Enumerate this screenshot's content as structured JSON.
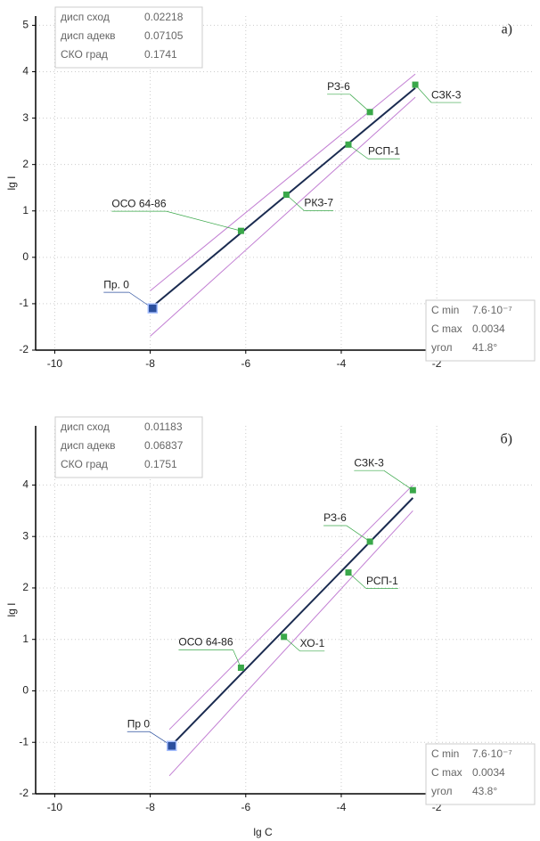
{
  "chart_data": [
    {
      "type": "scatter",
      "panel_label": "а)",
      "ylabel": "lg I",
      "xlim": [
        -10.4,
        0.05
      ],
      "ylim": [
        -2,
        5.2
      ],
      "xticks": [
        -10,
        -8,
        -6,
        -4,
        -2
      ],
      "yticks": [
        -2,
        -1,
        0,
        1,
        2,
        3,
        4,
        5
      ],
      "grid": true,
      "points": [
        {
          "label": "Пр. 0",
          "x": -7.95,
          "y": -1.1,
          "color": "#2b4f9e"
        },
        {
          "label": "ОСО 64-86",
          "x": -6.1,
          "y": 0.57,
          "color": "#3aa84a"
        },
        {
          "label": "РКЗ-7",
          "x": -5.15,
          "y": 1.35,
          "color": "#3aa84a"
        },
        {
          "label": "РСП-1",
          "x": -3.85,
          "y": 2.43,
          "color": "#3aa84a"
        },
        {
          "label": "РЗ-6",
          "x": -3.4,
          "y": 3.13,
          "color": "#3aa84a"
        },
        {
          "label": "СЗК-3",
          "x": -2.45,
          "y": 3.72,
          "color": "#3aa84a"
        }
      ],
      "fit_line": {
        "x": [
          -8,
          -2.45
        ],
        "y": [
          -1.1,
          3.65
        ],
        "color": "#1a2b50"
      },
      "band_upper": {
        "x": [
          -8,
          -2.45
        ],
        "y": [
          -0.72,
          3.95
        ],
        "color": "#c27fd3"
      },
      "band_lower": {
        "x": [
          -8,
          -2.45
        ],
        "y": [
          -1.7,
          3.45
        ],
        "color": "#c27fd3"
      },
      "stats_top": [
        {
          "label": "дисп сход",
          "value": "0.02218"
        },
        {
          "label": "дисп адекв",
          "value": "0.07105"
        },
        {
          "label": "СКО град",
          "value": "0.1741"
        }
      ],
      "stats_bottom": [
        {
          "label": "C min",
          "value": "7.6·10⁻⁷"
        },
        {
          "label": "C max",
          "value": "0.0034"
        },
        {
          "label": "угол",
          "value": "41.8°"
        }
      ]
    },
    {
      "type": "scatter",
      "panel_label": "б)",
      "ylabel": "lg I",
      "xlabel": "lg C",
      "xlim": [
        -10.4,
        0.05
      ],
      "ylim": [
        -2,
        5.15
      ],
      "xticks": [
        -10,
        -8,
        -6,
        -4,
        -2
      ],
      "yticks": [
        -2,
        -1,
        0,
        1,
        2,
        3,
        4
      ],
      "grid": true,
      "points": [
        {
          "label": "Пр 0",
          "x": -7.55,
          "y": -1.07,
          "color": "#2b4f9e"
        },
        {
          "label": "ОСО 64-86",
          "x": -6.1,
          "y": 0.45,
          "color": "#3aa84a"
        },
        {
          "label": "ХО-1",
          "x": -5.2,
          "y": 1.05,
          "color": "#3aa84a"
        },
        {
          "label": "РСП-1",
          "x": -3.85,
          "y": 2.3,
          "color": "#3aa84a"
        },
        {
          "label": "РЗ-6",
          "x": -3.4,
          "y": 2.9,
          "color": "#3aa84a"
        },
        {
          "label": "СЗК-3",
          "x": -2.5,
          "y": 3.9,
          "color": "#3aa84a"
        }
      ],
      "fit_line": {
        "x": [
          -7.6,
          -2.5
        ],
        "y": [
          -1.1,
          3.75
        ],
        "color": "#1a2b50"
      },
      "band_upper": {
        "x": [
          -7.6,
          -2.5
        ],
        "y": [
          -0.75,
          4.0
        ],
        "color": "#c27fd3"
      },
      "band_lower": {
        "x": [
          -7.6,
          -2.5
        ],
        "y": [
          -1.65,
          3.5
        ],
        "color": "#c27fd3"
      },
      "stats_top": [
        {
          "label": "дисп сход",
          "value": "0.01183"
        },
        {
          "label": "дисп адекв",
          "value": "0.06837"
        },
        {
          "label": "СКО град",
          "value": "0.1751"
        }
      ],
      "stats_bottom": [
        {
          "label": "C min",
          "value": "7.6·10⁻⁷"
        },
        {
          "label": "C max",
          "value": "0.0034"
        },
        {
          "label": "угол",
          "value": "43.8°"
        }
      ]
    }
  ]
}
